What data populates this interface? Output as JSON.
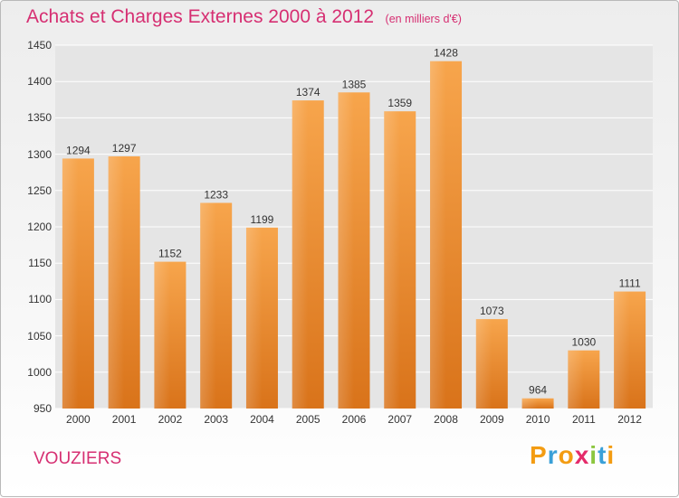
{
  "title": "Achats et Charges Externes 2000 à 2012",
  "unit": "(en milliers d'€)",
  "commune": "VOUZIERS",
  "logo": {
    "letters": [
      "P",
      "r",
      "o",
      "x",
      "i",
      "t",
      "i"
    ],
    "colors": [
      "#f39c12",
      "#3aa0d8",
      "#f39c12",
      "#e52b6a",
      "#8cc63f",
      "#3aa0d8",
      "#f39c12"
    ]
  },
  "colors": {
    "bar": "#f28d2b",
    "title": "#d62f72",
    "plot_bg": "#e5e5e5"
  },
  "chart_data": {
    "type": "bar",
    "title": "Achats et Charges Externes 2000 à 2012",
    "categories": [
      "2000",
      "2001",
      "2002",
      "2003",
      "2004",
      "2005",
      "2006",
      "2007",
      "2008",
      "2009",
      "2010",
      "2011",
      "2012"
    ],
    "values": [
      1294,
      1297,
      1152,
      1233,
      1199,
      1374,
      1385,
      1359,
      1428,
      1073,
      964,
      1030,
      1111
    ],
    "ylim": [
      950,
      1450
    ],
    "yticks": [
      950,
      1000,
      1050,
      1100,
      1150,
      1200,
      1250,
      1300,
      1350,
      1400,
      1450
    ],
    "grid": true,
    "data_labels": true
  }
}
